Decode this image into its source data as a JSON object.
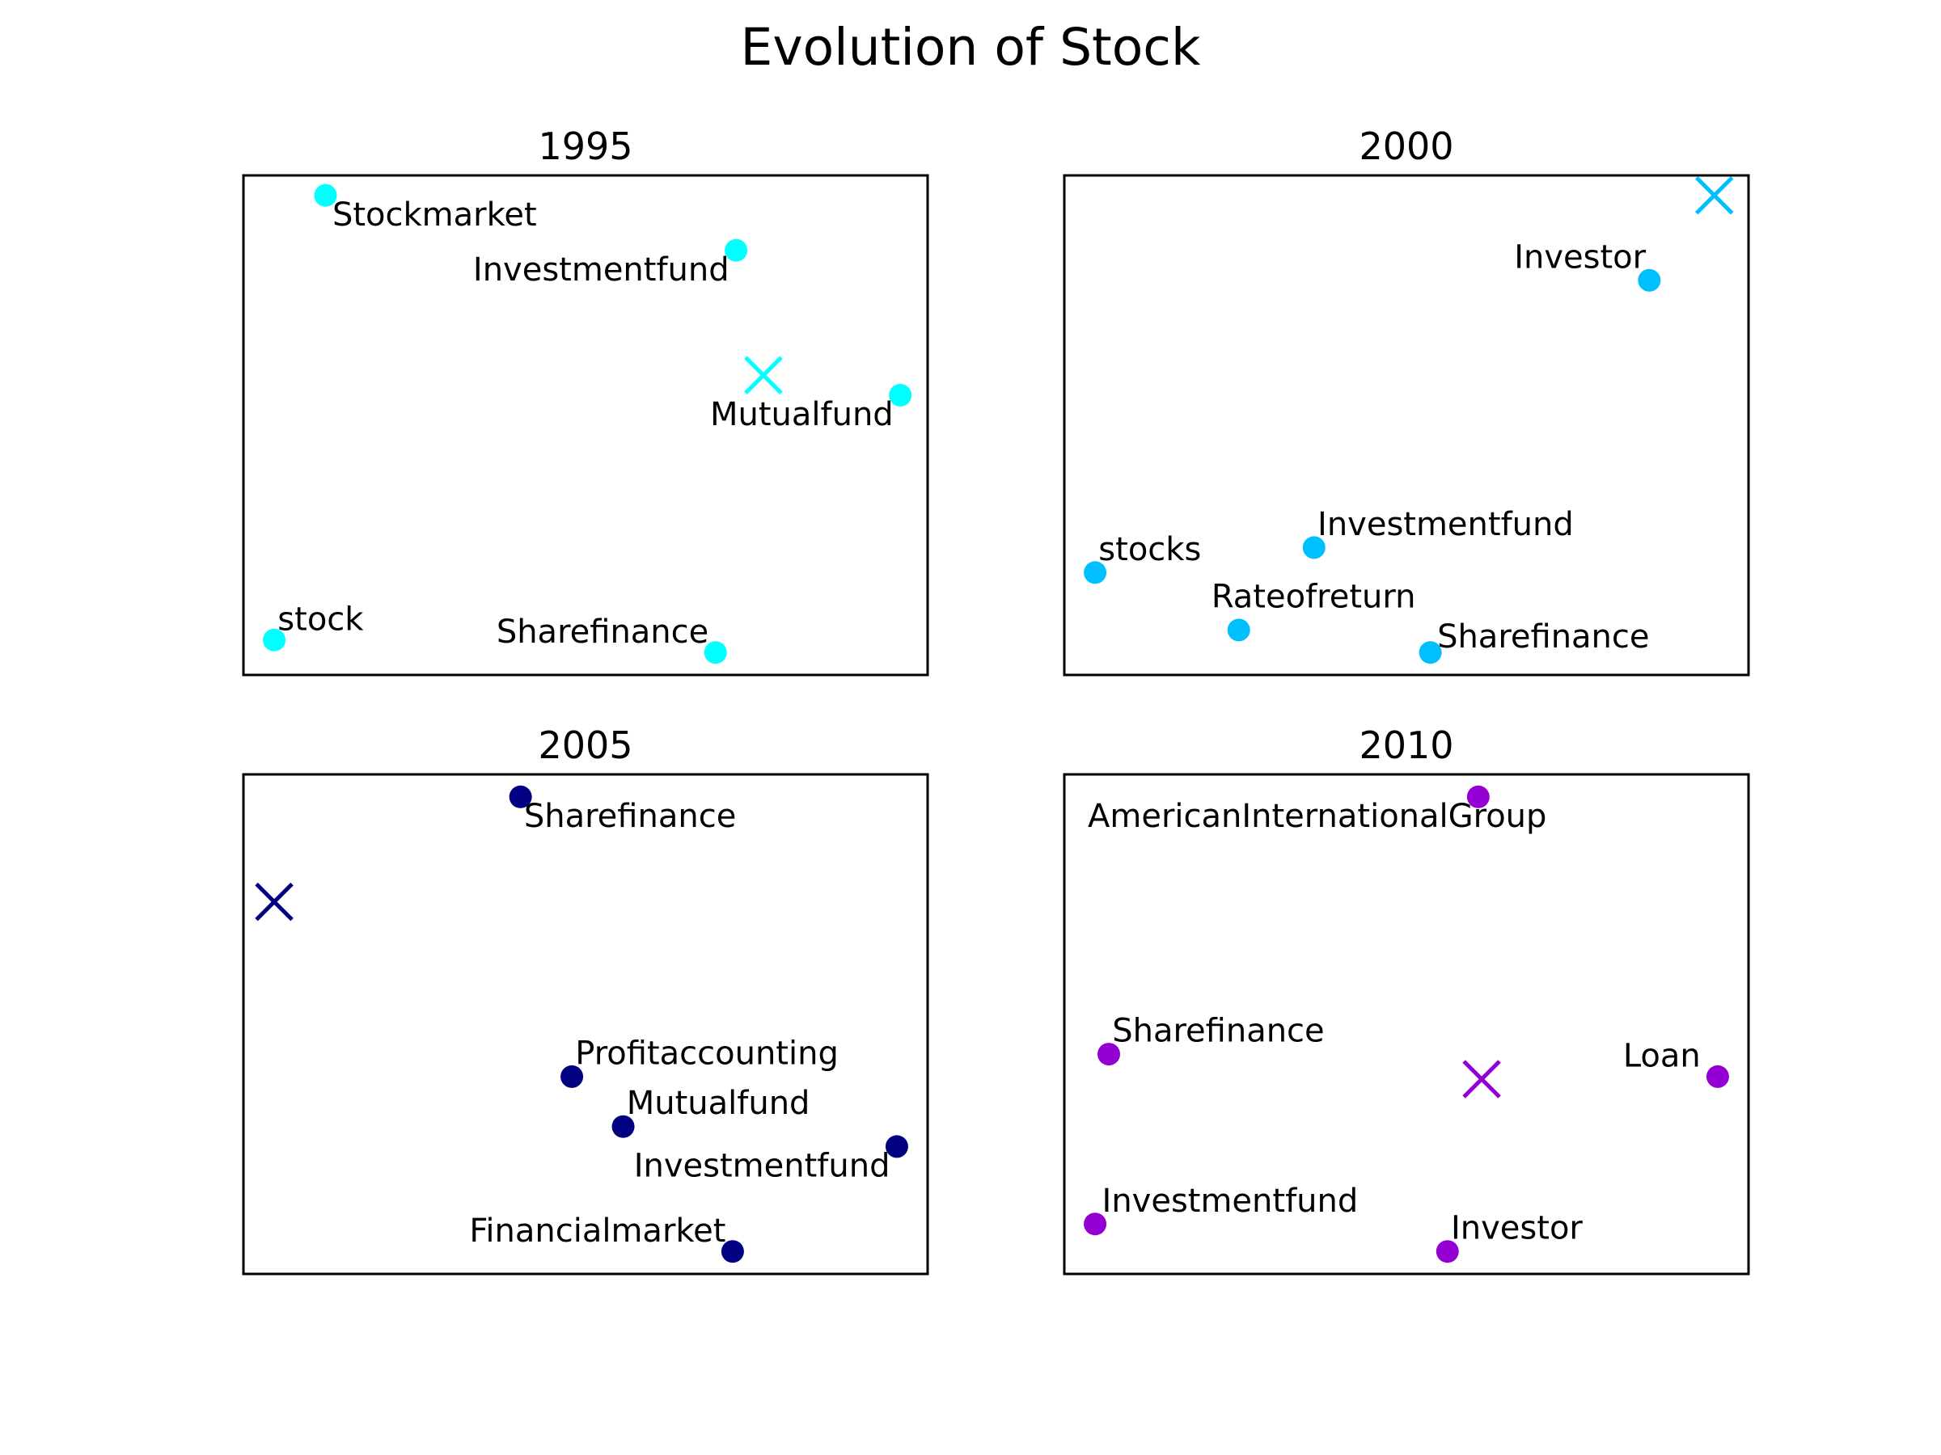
{
  "title": "Evolution of Stock",
  "chart_data": [
    {
      "type": "scatter",
      "title": "1995",
      "color": "#00FFFF",
      "xlim": [
        0,
        10
      ],
      "ylim": [
        0,
        10
      ],
      "axes_visible": false,
      "points": [
        {
          "label": "Stockmarket",
          "x": 1.2,
          "y": 9.6,
          "anchor": "start",
          "dx": 0.1,
          "dy": -0.6
        },
        {
          "label": "Investmentfund",
          "x": 7.2,
          "y": 8.5,
          "anchor": "end",
          "dx": -0.1,
          "dy": -0.6
        },
        {
          "label": "Mutualfund",
          "x": 9.6,
          "y": 5.6,
          "anchor": "end",
          "dx": -0.1,
          "dy": -0.6
        },
        {
          "label": "stock",
          "x": 0.45,
          "y": 0.7,
          "anchor": "start",
          "dx": 0.05,
          "dy": 0.2
        },
        {
          "label": "Sharefinance",
          "x": 6.9,
          "y": 0.45,
          "anchor": "end",
          "dx": -0.1,
          "dy": 0.2
        }
      ],
      "centroid": {
        "x": 7.6,
        "y": 6.0
      }
    },
    {
      "type": "scatter",
      "title": "2000",
      "color": "#00BFFF",
      "xlim": [
        0,
        10
      ],
      "ylim": [
        0,
        10
      ],
      "axes_visible": false,
      "points": [
        {
          "label": "Investor",
          "x": 8.55,
          "y": 7.9,
          "anchor": "end",
          "dx": -0.05,
          "dy": 0.25
        },
        {
          "label": "stocks",
          "x": 0.45,
          "y": 2.05,
          "anchor": "start",
          "dx": 0.05,
          "dy": 0.25
        },
        {
          "label": "Investmentfund",
          "x": 3.65,
          "y": 2.55,
          "anchor": "start",
          "dx": 0.05,
          "dy": 0.25
        },
        {
          "label": "Rateofreturn",
          "x": 2.55,
          "y": 0.9,
          "anchor": "start",
          "dx": -0.4,
          "dy": 0.45
        },
        {
          "label": "Sharefinance",
          "x": 5.35,
          "y": 0.45,
          "anchor": "start",
          "dx": 0.1,
          "dy": 0.1
        }
      ],
      "centroid": {
        "x": 9.5,
        "y": 9.6
      }
    },
    {
      "type": "scatter",
      "title": "2005",
      "color": "#000080",
      "xlim": [
        0,
        10
      ],
      "ylim": [
        0,
        10
      ],
      "axes_visible": false,
      "points": [
        {
          "label": "Sharefinance",
          "x": 4.05,
          "y": 9.55,
          "anchor": "start",
          "dx": 0.05,
          "dy": -0.6
        },
        {
          "label": "Profitaccounting",
          "x": 4.8,
          "y": 3.95,
          "anchor": "start",
          "dx": 0.05,
          "dy": 0.25
        },
        {
          "label": "Mutualfund",
          "x": 5.55,
          "y": 2.95,
          "anchor": "start",
          "dx": 0.05,
          "dy": 0.25
        },
        {
          "label": "Investmentfund",
          "x": 9.55,
          "y": 2.55,
          "anchor": "end",
          "dx": -0.1,
          "dy": -0.6
        },
        {
          "label": "Financialmarket",
          "x": 7.15,
          "y": 0.45,
          "anchor": "end",
          "dx": -0.1,
          "dy": 0.2
        }
      ],
      "centroid": {
        "x": 0.45,
        "y": 7.45
      }
    },
    {
      "type": "scatter",
      "title": "2010",
      "color": "#9400D3",
      "xlim": [
        0,
        10
      ],
      "ylim": [
        0,
        10
      ],
      "axes_visible": false,
      "points": [
        {
          "label": "AmericanInternationalGroup",
          "x": 6.05,
          "y": 9.55,
          "anchor": "end",
          "dx": 1.0,
          "dy": -0.6
        },
        {
          "label": "Sharefinance",
          "x": 0.65,
          "y": 4.4,
          "anchor": "start",
          "dx": 0.05,
          "dy": 0.25
        },
        {
          "label": "Loan",
          "x": 9.55,
          "y": 3.95,
          "anchor": "end",
          "dx": -0.25,
          "dy": 0.2
        },
        {
          "label": "Investmentfund",
          "x": 0.45,
          "y": 1.0,
          "anchor": "start",
          "dx": 0.1,
          "dy": 0.25
        },
        {
          "label": "Investor",
          "x": 5.6,
          "y": 0.45,
          "anchor": "start",
          "dx": 0.05,
          "dy": 0.25
        }
      ],
      "centroid": {
        "x": 6.1,
        "y": 3.9
      }
    }
  ]
}
